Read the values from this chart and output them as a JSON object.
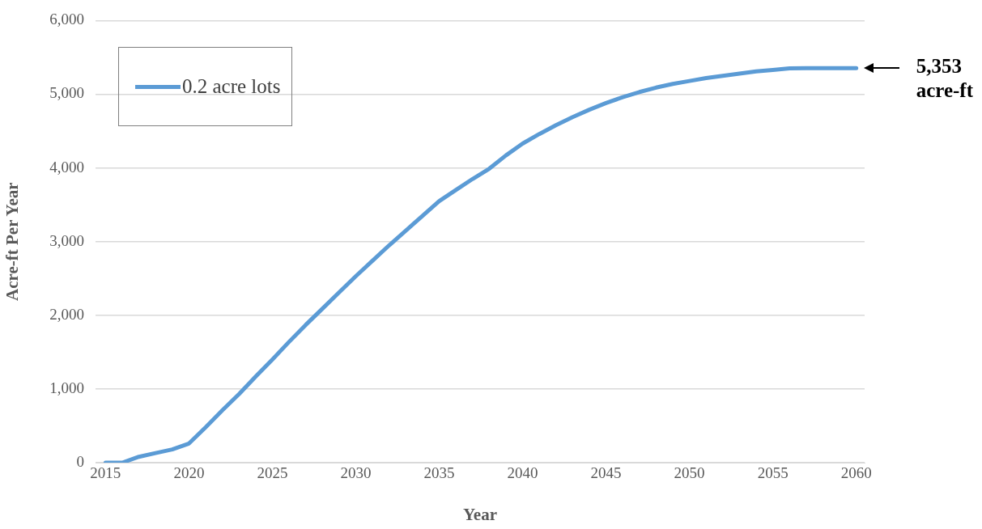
{
  "chart_data": {
    "type": "line",
    "xlabel": "Year",
    "ylabel": "Acre-ft Per Year",
    "x": [
      2015,
      2016,
      2017,
      2018,
      2019,
      2020,
      2021,
      2022,
      2023,
      2024,
      2025,
      2026,
      2027,
      2028,
      2029,
      2030,
      2031,
      2032,
      2033,
      2034,
      2035,
      2036,
      2037,
      2038,
      2039,
      2040,
      2041,
      2042,
      2043,
      2044,
      2045,
      2046,
      2047,
      2048,
      2049,
      2050,
      2051,
      2052,
      2053,
      2054,
      2055,
      2056,
      2057,
      2058,
      2059,
      2060
    ],
    "series": [
      {
        "name": "0.2 acre lots",
        "color": "#5b9bd5",
        "values": [
          0,
          0,
          80,
          130,
          180,
          260,
          480,
          710,
          930,
          1170,
          1400,
          1640,
          1870,
          2090,
          2310,
          2530,
          2740,
          2950,
          3150,
          3350,
          3550,
          3700,
          3850,
          3990,
          4170,
          4330,
          4460,
          4580,
          4690,
          4790,
          4880,
          4960,
          5030,
          5090,
          5140,
          5180,
          5220,
          5250,
          5280,
          5310,
          5330,
          5350,
          5353,
          5353,
          5353,
          5353
        ]
      }
    ],
    "xlim": [
      2014.4,
      2060.5
    ],
    "xticks": [
      2015,
      2020,
      2025,
      2030,
      2035,
      2040,
      2045,
      2050,
      2055,
      2060
    ],
    "ylim": [
      0,
      6000
    ],
    "yticks": [
      0,
      {
        "value": 1000,
        "label": "1,000"
      },
      {
        "value": 2000,
        "label": "2,000"
      },
      {
        "value": 3000,
        "label": "3,000"
      },
      {
        "value": 4000,
        "label": "4,000"
      },
      {
        "value": 5000,
        "label": "5,000"
      },
      {
        "value": 6000,
        "label": "6,000"
      }
    ],
    "grid": "y",
    "legend": "top left",
    "marker": "none",
    "line_style": "solid",
    "annotations": [
      {
        "text": "5,353 acre-ft",
        "x": 2060,
        "y": 5353
      }
    ]
  }
}
